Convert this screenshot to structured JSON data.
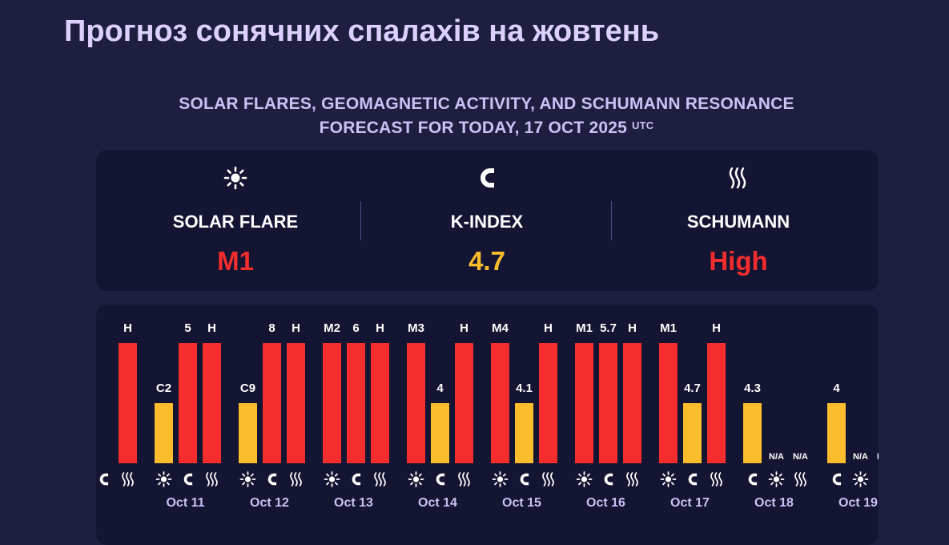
{
  "page_title": "Прогноз сонячних спалахів на жовтень",
  "subtitle_line1": "SOLAR FLARES, GEOMAGNETIC ACTIVITY, AND SCHUMANN RESONANCE",
  "subtitle_line2": "FORECAST FOR TODAY, 17 OCT 2025",
  "subtitle_sup": "UTC",
  "summary": {
    "solar_flare": {
      "label": "SOLAR FLARE",
      "value": "M1",
      "icon": "sun-icon",
      "color": "#f62d2d"
    },
    "k_index": {
      "label": "K-INDEX",
      "value": "4.7",
      "icon": "magnet-icon",
      "color": "#fbbd2c"
    },
    "schumann": {
      "label": "SCHUMANN",
      "value": "High",
      "icon": "waves-icon",
      "color": "#f62d2d"
    }
  },
  "colors": {
    "high": "#f62d2d",
    "moderate": "#fbbd2c"
  },
  "chart_data": {
    "type": "bar",
    "days": [
      {
        "date": "",
        "bars": [
          {
            "kind": "solar",
            "label": "",
            "level": 0.0
          },
          {
            "kind": "kindex",
            "label": "",
            "level": 0.0
          },
          {
            "kind": "schumann",
            "label": "H",
            "level": 1.0,
            "color": "high"
          }
        ],
        "icons": [
          "sun-icon",
          "magnet-icon",
          "waves-icon"
        ]
      },
      {
        "date": "Oct 11",
        "bars": [
          {
            "kind": "solar",
            "label": "C2",
            "level": 0.5,
            "color": "moderate"
          },
          {
            "kind": "kindex",
            "label": "5",
            "level": 1.0,
            "color": "high"
          },
          {
            "kind": "schumann",
            "label": "H",
            "level": 1.0,
            "color": "high"
          }
        ],
        "icons": [
          "sun-icon",
          "magnet-icon",
          "waves-icon"
        ]
      },
      {
        "date": "Oct 12",
        "bars": [
          {
            "kind": "solar",
            "label": "C9",
            "level": 0.5,
            "color": "moderate"
          },
          {
            "kind": "kindex",
            "label": "8",
            "level": 1.0,
            "color": "high"
          },
          {
            "kind": "schumann",
            "label": "H",
            "level": 1.0,
            "color": "high"
          }
        ],
        "icons": [
          "sun-icon",
          "magnet-icon",
          "waves-icon"
        ]
      },
      {
        "date": "Oct 13",
        "bars": [
          {
            "kind": "solar",
            "label": "M2",
            "level": 1.0,
            "color": "high"
          },
          {
            "kind": "kindex",
            "label": "6",
            "level": 1.0,
            "color": "high"
          },
          {
            "kind": "schumann",
            "label": "H",
            "level": 1.0,
            "color": "high"
          }
        ],
        "icons": [
          "sun-icon",
          "magnet-icon",
          "waves-icon"
        ]
      },
      {
        "date": "Oct 14",
        "bars": [
          {
            "kind": "solar",
            "label": "M3",
            "level": 1.0,
            "color": "high"
          },
          {
            "kind": "kindex",
            "label": "4",
            "level": 0.5,
            "color": "moderate"
          },
          {
            "kind": "schumann",
            "label": "H",
            "level": 1.0,
            "color": "high"
          }
        ],
        "icons": [
          "sun-icon",
          "magnet-icon",
          "waves-icon"
        ]
      },
      {
        "date": "Oct 15",
        "bars": [
          {
            "kind": "solar",
            "label": "M4",
            "level": 1.0,
            "color": "high"
          },
          {
            "kind": "kindex",
            "label": "4.1",
            "level": 0.5,
            "color": "moderate"
          },
          {
            "kind": "schumann",
            "label": "H",
            "level": 1.0,
            "color": "high"
          }
        ],
        "icons": [
          "sun-icon",
          "magnet-icon",
          "waves-icon"
        ]
      },
      {
        "date": "Oct 16",
        "bars": [
          {
            "kind": "solar",
            "label": "M1",
            "level": 1.0,
            "color": "high"
          },
          {
            "kind": "kindex",
            "label": "5.7",
            "level": 1.0,
            "color": "high"
          },
          {
            "kind": "schumann",
            "label": "H",
            "level": 1.0,
            "color": "high"
          }
        ],
        "icons": [
          "sun-icon",
          "magnet-icon",
          "waves-icon"
        ]
      },
      {
        "date": "Oct 17",
        "bars": [
          {
            "kind": "solar",
            "label": "M1",
            "level": 1.0,
            "color": "high"
          },
          {
            "kind": "kindex",
            "label": "4.7",
            "level": 0.5,
            "color": "moderate"
          },
          {
            "kind": "schumann",
            "label": "H",
            "level": 1.0,
            "color": "high"
          }
        ],
        "icons": [
          "sun-icon",
          "magnet-icon",
          "waves-icon"
        ]
      },
      {
        "date": "Oct 18",
        "bars": [
          {
            "kind": "kindex",
            "label": "4.3",
            "level": 0.5,
            "color": "moderate"
          },
          {
            "kind": "solar",
            "label": "N/A",
            "level": 0.0
          },
          {
            "kind": "schumann",
            "label": "N/A",
            "level": 0.0
          }
        ],
        "icons": [
          "magnet-icon",
          "sun-icon",
          "waves-icon"
        ]
      },
      {
        "date": "Oct 19",
        "bars": [
          {
            "kind": "kindex",
            "label": "4",
            "level": 0.5,
            "color": "moderate"
          },
          {
            "kind": "solar",
            "label": "N/A",
            "level": 0.0
          },
          {
            "kind": "schumann",
            "label": "N/A",
            "level": 0.0
          }
        ],
        "icons": [
          "magnet-icon",
          "sun-icon",
          "waves-icon"
        ]
      }
    ]
  }
}
